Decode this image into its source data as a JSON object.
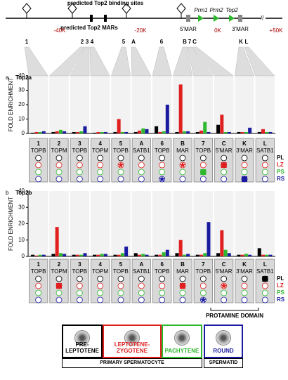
{
  "map": {
    "title": "predicted Top2 binding sites",
    "mar_label": "predicted Top2 MARs",
    "scale_labels": [
      "-40K",
      "-20K",
      "0K",
      "+50K"
    ],
    "region_labels": [
      "5'MAR",
      "3'MAR"
    ],
    "genes": [
      "Prm1",
      "Prm2",
      "Top2"
    ]
  },
  "chart_data": [
    {
      "type": "bar",
      "panel": "a",
      "title": "Top2a",
      "ylabel": "FOLD ENRICHMENT",
      "categories": [
        "1",
        "2",
        "3",
        "4",
        "5",
        "A",
        "6",
        "B",
        "7",
        "C",
        "K",
        "L"
      ],
      "site_types": [
        "TOPB",
        "TOPM",
        "TOPB",
        "TOPM",
        "TOPB",
        "SATB1",
        "TOPB",
        "MAR",
        "TOPB",
        "5'MAR",
        "3'MAR",
        "SATB1"
      ],
      "series": [
        {
          "name": "PL",
          "color": "#000000",
          "values": [
            0.5,
            1,
            1,
            0.5,
            1,
            1,
            5,
            1,
            1,
            6,
            1,
            1
          ],
          "markers": [
            null,
            null,
            null,
            null,
            null,
            null,
            null,
            null,
            null,
            null,
            null,
            null
          ]
        },
        {
          "name": "LZ",
          "color": "#e02020",
          "values": [
            1,
            1.5,
            1,
            1,
            10,
            2,
            1,
            34,
            2,
            13,
            1,
            3
          ],
          "markers": [
            null,
            null,
            null,
            null,
            "star",
            null,
            null,
            "star",
            null,
            "square",
            null,
            null
          ]
        },
        {
          "name": "PS",
          "color": "#2db82d",
          "values": [
            1,
            2.5,
            1.5,
            1,
            1,
            3.5,
            1.5,
            1.5,
            8,
            1,
            1,
            1
          ],
          "markers": [
            null,
            null,
            null,
            null,
            null,
            null,
            null,
            null,
            "square",
            null,
            null,
            null
          ]
        },
        {
          "name": "RS",
          "color": "#1a1aa0",
          "values": [
            1.5,
            1.5,
            5,
            1,
            1,
            3,
            20,
            1.5,
            1,
            1,
            4,
            1
          ],
          "markers": [
            null,
            null,
            null,
            null,
            null,
            null,
            "star",
            null,
            null,
            null,
            "square",
            null
          ]
        }
      ],
      "ylim": [
        0,
        40
      ],
      "yticks": [
        0,
        10,
        20,
        30,
        40
      ]
    },
    {
      "type": "bar",
      "panel": "b",
      "title": "Top2b",
      "ylabel": "FOLD ENRICHMENT",
      "categories": [
        "1",
        "2",
        "3",
        "4",
        "5",
        "A",
        "6",
        "B",
        "7",
        "C",
        "K",
        "L"
      ],
      "site_types": [
        "TOPB",
        "TOPM",
        "TOPB",
        "TOPM",
        "TOPB",
        "SATB1",
        "TOPB",
        "MAR",
        "TOPB",
        "5'MAR",
        "3'MAR",
        "SATB1"
      ],
      "series": [
        {
          "name": "PL",
          "color": "#000000",
          "values": [
            1,
            1.5,
            1,
            1,
            1,
            2,
            1,
            2,
            1,
            2,
            1,
            5
          ],
          "markers": [
            null,
            null,
            null,
            null,
            null,
            null,
            null,
            null,
            null,
            null,
            null,
            "square"
          ]
        },
        {
          "name": "LZ",
          "color": "#e02020",
          "values": [
            0.5,
            18,
            1,
            1,
            1,
            1,
            1,
            10,
            1,
            16,
            1,
            1
          ],
          "markers": [
            null,
            "square",
            null,
            null,
            null,
            null,
            null,
            "square",
            null,
            "star",
            null,
            null
          ]
        },
        {
          "name": "PS",
          "color": "#2db82d",
          "values": [
            1,
            2,
            1,
            1.5,
            2,
            1.5,
            2.5,
            1,
            2,
            4,
            1.5,
            1
          ],
          "markers": [
            null,
            null,
            null,
            null,
            null,
            null,
            null,
            null,
            null,
            null,
            null,
            null
          ]
        },
        {
          "name": "RS",
          "color": "#1a1aa0",
          "values": [
            1,
            1.5,
            2,
            1.5,
            6,
            1,
            4,
            1.5,
            21,
            2,
            1,
            1
          ],
          "markers": [
            null,
            null,
            null,
            null,
            null,
            null,
            null,
            null,
            "star",
            null,
            null,
            null
          ]
        }
      ],
      "ylim": [
        0,
        40
      ],
      "yticks": [
        0,
        10,
        20,
        30,
        40
      ]
    }
  ],
  "domain_label": "PROTAMINE DOMAIN",
  "stages": {
    "cells": [
      "PRE-LEPTOTENE",
      "LEPTOTENE-ZYGOTENE",
      "PACHYTENE",
      "ROUND"
    ],
    "groups": [
      "PRIMARY SPERMATOCYTE",
      "SPERMATID"
    ]
  }
}
